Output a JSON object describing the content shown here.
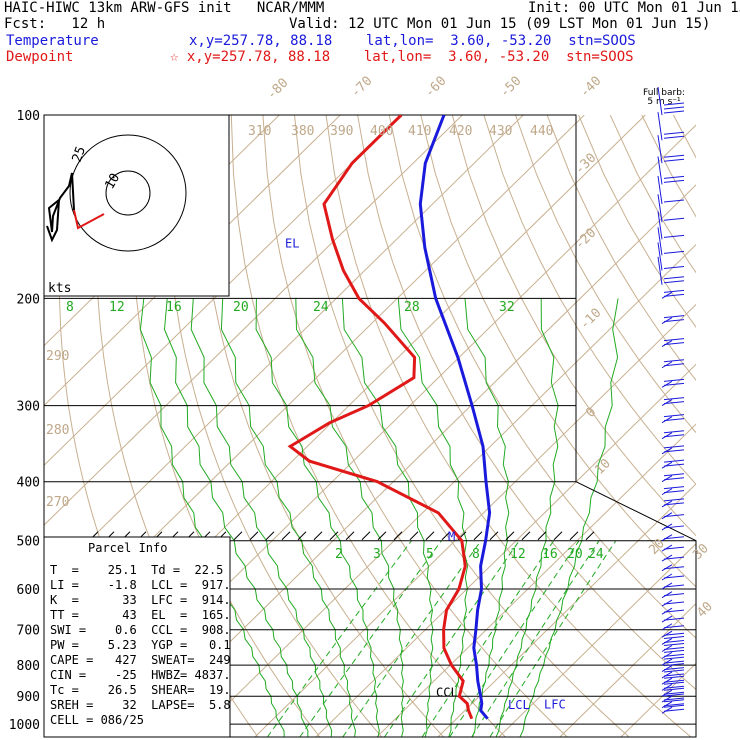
{
  "header": {
    "title": "HAIC-HIWC 13km ARW-GFS init   NCAR/MMM",
    "init": "Init: 00 UTC Mon 01 Jun 15",
    "fcst": "Fcst:   12 h",
    "valid": "Valid: 12 UTC Mon 01 Jun 15 (09 LST Mon 01 Jun 15)",
    "temp_label": "Temperature",
    "temp_info": "x,y=257.78, 88.18    lat,lon=  3.60, -53.20  stn=SOOS",
    "dew_label": "Dewpoint",
    "dew_info": "☆ x,y=257.78, 88.18    lat,lon=  3.60, -53.20  stn=SOOS",
    "barb_key_1": "Full barb:",
    "barb_key_2": "5 m s⁻¹"
  },
  "colors": {
    "temperature": "#1a1adc",
    "dewpoint": "#e01818",
    "isotherm": "#c8b090",
    "mixing_ratio": "#22aa22",
    "theta_e": "#22aa22",
    "wind": "#1a1adc"
  },
  "parcel_info": {
    "title": "Parcel Info",
    "rows": [
      "T  =    25.1  Td =  22.5",
      "LI =    -1.8  LCL =  917.",
      "K  =      33  LFC =  914.",
      "TT =      43  EL  =  165.",
      "SWI =    0.6  CCL =  908.",
      "PW =    5.23  YGP =   0.1",
      "CAPE =   427  SWEAT=  249",
      "CIN =    -25  HWBZ= 4837.",
      "Tc =    26.5  SHEAR=  19.",
      "SREH =    32  LAPSE=  5.8",
      "CELL = 086/25"
    ]
  },
  "chart_data": {
    "type": "skew-t",
    "pressure_ticks": [
      "100",
      "200",
      "300",
      "400",
      "500",
      "600",
      "700",
      "800",
      "900",
      "1000"
    ],
    "pressure_tick_values": [
      100,
      200,
      300,
      400,
      500,
      600,
      700,
      800,
      900,
      1000
    ],
    "isotherm_labels": [
      "-80",
      "-70",
      "-60",
      "-50",
      "-40",
      "-30",
      "-20",
      "-10",
      "0",
      "10",
      "20",
      "30",
      "40"
    ],
    "theta_labels": [
      "310",
      "380",
      "390",
      "400",
      "410",
      "420",
      "430",
      "440",
      "290",
      "280",
      "270"
    ],
    "mixing_ratio_labels_upper": [
      "8",
      "12",
      "16",
      "20",
      "24",
      "28",
      "32"
    ],
    "mixing_ratio_labels_lower": [
      "2",
      "3",
      "5",
      "8",
      "12",
      "16",
      "20",
      "24"
    ],
    "series": [
      {
        "name": "Temperature",
        "pressure": [
          980,
          950,
          925,
          900,
          850,
          800,
          750,
          700,
          650,
          600,
          550,
          500,
          450,
          400,
          350,
          300,
          250,
          200,
          165,
          140,
          120,
          100
        ],
        "temperature_c": [
          25.1,
          22.6,
          21.6,
          20.2,
          17.2,
          14.3,
          11.0,
          8.3,
          5.3,
          2.4,
          -1.6,
          -5.0,
          -9.0,
          -14.8,
          -21.2,
          -29.8,
          -40.2,
          -53.7,
          -64.0,
          -72.0,
          -78.0,
          -83.0
        ]
      },
      {
        "name": "Dewpoint",
        "pressure": [
          980,
          950,
          925,
          900,
          850,
          800,
          750,
          700,
          650,
          600,
          550,
          500,
          450,
          400,
          370,
          350,
          320,
          300,
          270,
          250,
          220,
          200,
          180,
          160,
          140,
          120,
          100
        ],
        "dewpoint_c": [
          22.5,
          20.6,
          19.2,
          16.7,
          14.8,
          10.2,
          6.1,
          3.0,
          0.2,
          -1.3,
          -4.1,
          -8.9,
          -17.4,
          -32.6,
          -47.2,
          -52.8,
          -50.3,
          -46.8,
          -44.0,
          -47.3,
          -57.8,
          -66.3,
          -73.5,
          -80.5,
          -87.8,
          -90.0,
          -90.0
        ]
      }
    ],
    "annotations": [
      {
        "text": "EL",
        "pressure": 165
      },
      {
        "text": "M",
        "pressure": 500
      },
      {
        "text": "CCL",
        "pressure": 908
      },
      {
        "text": "LCL",
        "pressure": 917
      },
      {
        "text": "LFC",
        "pressure": 914
      }
    ],
    "hodograph": {
      "units": "kts",
      "ring_labels": [
        "10",
        "25"
      ]
    },
    "wind_profile": {
      "units": "m s-1",
      "pressure": [
        960,
        940,
        920,
        900,
        880,
        860,
        840,
        820,
        800,
        780,
        760,
        740,
        720,
        700,
        680,
        660,
        640,
        620,
        600,
        580,
        560,
        540,
        520,
        500,
        480,
        460,
        440,
        420,
        400,
        380,
        360,
        340,
        320,
        300,
        280,
        260,
        240,
        220,
        200,
        190,
        180,
        170,
        160,
        150,
        140,
        130,
        120,
        110,
        100
      ],
      "speed_ms": [
        8,
        9,
        10,
        10,
        10,
        10,
        10,
        9,
        9,
        9,
        8,
        8,
        7,
        7,
        6,
        6,
        6,
        5,
        5,
        5,
        5,
        5,
        5,
        5,
        6,
        7,
        8,
        8,
        9,
        10,
        10,
        11,
        12,
        12,
        12,
        12,
        11,
        11,
        9,
        8,
        6,
        4,
        3,
        4,
        6,
        8,
        10,
        12,
        14
      ]
    }
  }
}
